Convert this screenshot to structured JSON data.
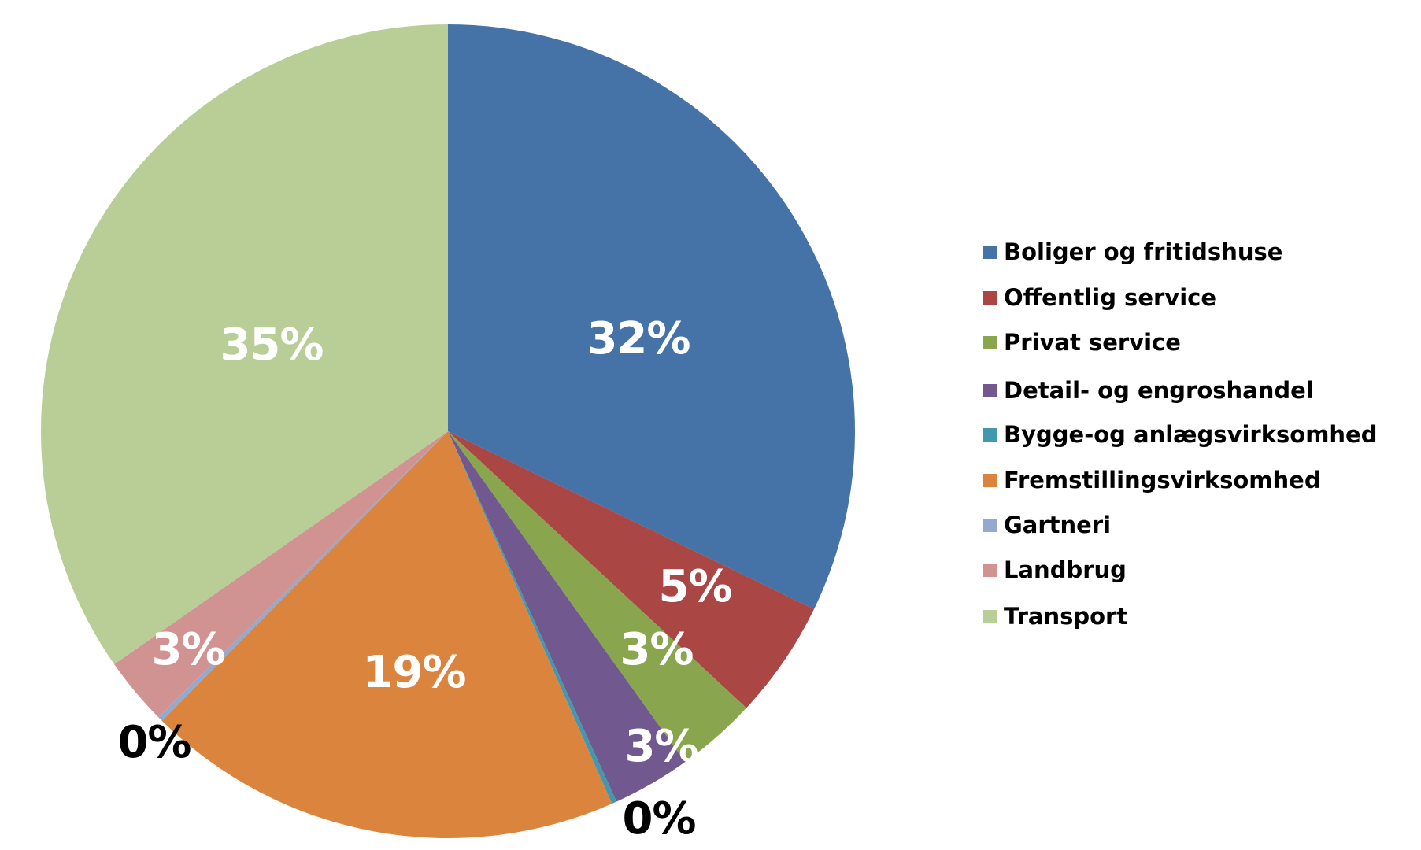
{
  "chart_data": {
    "type": "pie",
    "title": "",
    "legend_position": "right",
    "slices": [
      {
        "name": "Boliger og fritidshuse",
        "value": 32.2,
        "label": "32%",
        "color": "#4572a7"
      },
      {
        "name": "Offentlig service",
        "value": 4.7,
        "label": "5%",
        "color": "#aa4643"
      },
      {
        "name": "Privat service",
        "value": 3.2,
        "label": "3%",
        "color": "#89a54e"
      },
      {
        "name": "Detail- og engroshandel",
        "value": 3.1,
        "label": "3%",
        "color": "#71588f"
      },
      {
        "name": "Bygge-og anlægsvirksomhed",
        "value": 0.2,
        "label": "0%",
        "color": "#4198af"
      },
      {
        "name": "Fremstillingsvirksomhed",
        "value": 19.0,
        "label": "19%",
        "color": "#db843d"
      },
      {
        "name": "Gartneri",
        "value": 0.2,
        "label": "0%",
        "color": "#93a9cf"
      },
      {
        "name": "Landbrug",
        "value": 2.7,
        "label": "3%",
        "color": "#d19392"
      },
      {
        "name": "Transport",
        "value": 34.7,
        "label": "35%",
        "color": "#b9cd96"
      }
    ]
  }
}
